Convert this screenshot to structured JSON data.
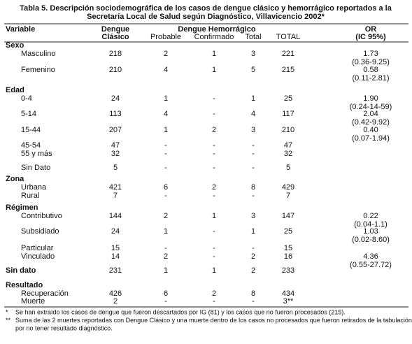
{
  "title": [
    "Tabla 5. Descripción sociodemográfica de los casos de dengue clásico y hemorrágico reportados a la",
    "Secretaría Local de Salud según Diagnóstico, Villavicencio 2002*"
  ],
  "header": {
    "variable": "Variable",
    "clasico": [
      "Dengue",
      "Clásico"
    ],
    "hemorragico": "Dengue Hemorrágico",
    "probable": "Probable",
    "confirmado": "Confirmado",
    "total": "Total",
    "total_all": "TOTAL",
    "or": [
      "OR",
      "(IC 95%)"
    ]
  },
  "rows": [
    {
      "group": "Sexo"
    },
    {
      "label": "Masculino",
      "cells": [
        "218",
        "2",
        "1",
        "3",
        "221"
      ],
      "or": "1.73",
      "ci": "(0.36-9.25)"
    },
    {
      "label": "Femenino",
      "cells": [
        "210",
        "4",
        "1",
        "5",
        "215"
      ],
      "or": "0.58",
      "ci": "(0.11-2.81)"
    },
    {
      "group": "Edad"
    },
    {
      "label": "0-4",
      "cells": [
        "24",
        "1",
        "-",
        "1",
        "25"
      ],
      "or": "1.90",
      "ci": "(0.24-14-59)"
    },
    {
      "label": "5-14",
      "cells": [
        "113",
        "4",
        "-",
        "4",
        "117"
      ],
      "or": "2.04",
      "ci": "(0.42-9.92)"
    },
    {
      "label": "15-44",
      "cells": [
        "207",
        "1",
        "2",
        "3",
        "210"
      ],
      "or": "0.40",
      "ci": "(0.07-1.94)"
    },
    {
      "label": "45-54",
      "cells": [
        "47",
        "-",
        "-",
        "-",
        "47"
      ]
    },
    {
      "label": "55 y más",
      "cells": [
        "32",
        "-",
        "-",
        "-",
        "32"
      ]
    },
    {
      "label": "Sin Dato",
      "cells": [
        "5",
        "-",
        "-",
        "-",
        "5"
      ]
    },
    {
      "group": "Zona"
    },
    {
      "label": "Urbana",
      "cells": [
        "421",
        "6",
        "2",
        "8",
        "429"
      ]
    },
    {
      "label": "Rural",
      "cells": [
        "7",
        "-",
        "-",
        "-",
        "7"
      ]
    },
    {
      "group": "Régimen"
    },
    {
      "label": "Contributivo",
      "cells": [
        "144",
        "2",
        "1",
        "3",
        "147"
      ],
      "or": "0.22",
      "ci": "(0.04-1.1)"
    },
    {
      "label": "Subsidiado",
      "cells": [
        "24",
        "1",
        "-",
        "1",
        "25"
      ],
      "or": "1.03",
      "ci": "(0.02-8.60)"
    },
    {
      "label": "Particular",
      "cells": [
        "15",
        "-",
        "-",
        "-",
        "15"
      ]
    },
    {
      "label": "Vinculado",
      "cells": [
        "14",
        "2",
        "-",
        "2",
        "16"
      ],
      "or": "4.36",
      "ci": "(0.55-27.72)"
    },
    {
      "group": "Sin dato",
      "cells": [
        "231",
        "1",
        "1",
        "2",
        "233"
      ]
    },
    {
      "group": "Resultado"
    },
    {
      "label": "Recuperación",
      "cells": [
        "426",
        "6",
        "2",
        "8",
        "434"
      ]
    },
    {
      "label": "Muerte",
      "cells": [
        "2",
        "-",
        "-",
        "-",
        "3**"
      ]
    }
  ],
  "footnotes": [
    {
      "mark": "*",
      "text": "Se han extraído los casos de dengue que fueron descartados por IG (81) y los casos que no fueron procesados (215)."
    },
    {
      "mark": "**",
      "text": "Suma de las 2 muertes reportadas con Dengue Clásico y una muerte dentro de los casos no procesados que fueron retirados de la tabulación"
    },
    {
      "mark": "",
      "text": "por no tener resultado diagnóstico."
    }
  ]
}
